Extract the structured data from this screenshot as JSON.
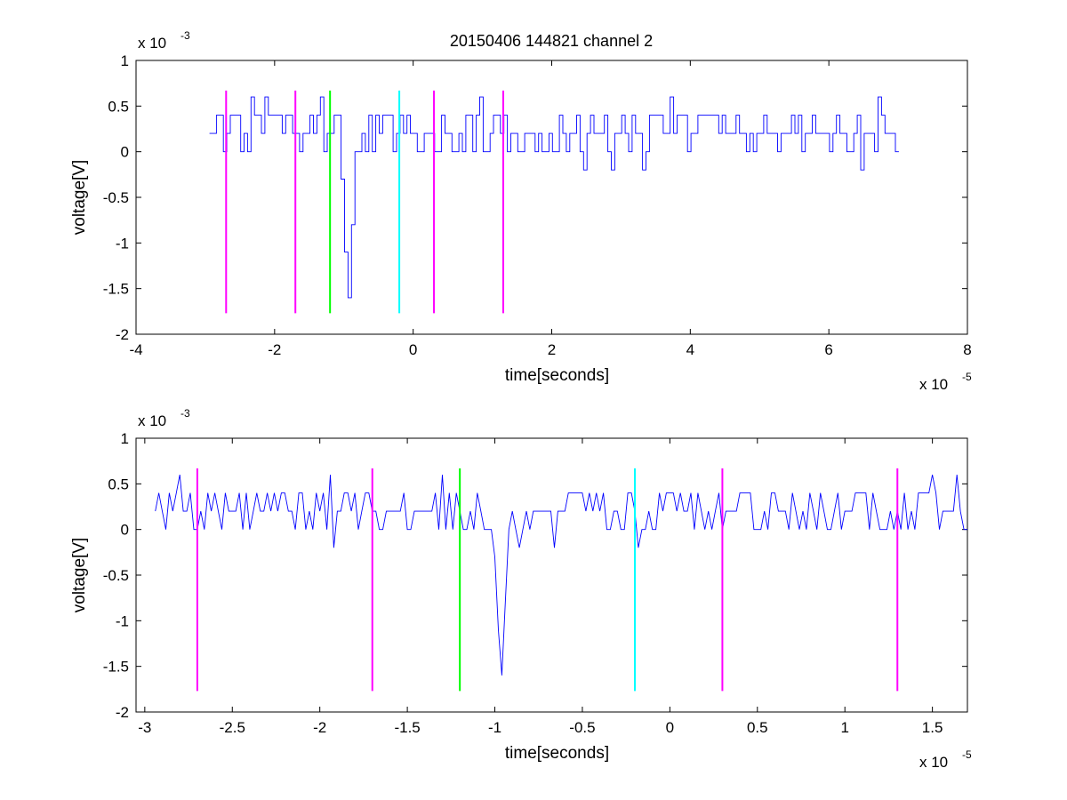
{
  "title": "20150406 144821 channel 2",
  "colors": {
    "signal": "#0000ff",
    "magenta": "#ff00ff",
    "green": "#00ff00",
    "cyan": "#00ffff",
    "axis": "#000000"
  },
  "chart_data": [
    {
      "type": "line",
      "xlabel": "time[seconds]",
      "ylabel": "voltage[V]",
      "x_multiplier": {
        "base": "x 10",
        "exp": "-5"
      },
      "y_multiplier": {
        "base": "x 10",
        "exp": "-3"
      },
      "xlim": [
        -4,
        8
      ],
      "ylim": [
        -2,
        1
      ],
      "xticks": [
        -4,
        -2,
        0,
        2,
        4,
        6,
        8
      ],
      "xtick_labels": [
        "-4",
        "-2",
        "0",
        "2",
        "4",
        "6",
        "8"
      ],
      "yticks": [
        1,
        0.5,
        0,
        -0.5,
        -1,
        -1.5,
        -2
      ],
      "ytick_labels": [
        "1",
        "0.5",
        "0",
        "-0.5",
        "-1",
        "-1.5",
        "-2"
      ],
      "series": [
        {
          "color": "#0000ff",
          "x_range": [
            -2.94,
            7.02
          ],
          "baseline": 0.2,
          "quantum": 0.2,
          "spike": {
            "x": -0.97,
            "y": -1.6
          }
        }
      ],
      "markers": [
        {
          "x": -2.7,
          "color": "#ff00ff",
          "y_range": [
            -1.77,
            0.67
          ]
        },
        {
          "x": -1.7,
          "color": "#ff00ff",
          "y_range": [
            -1.77,
            0.67
          ]
        },
        {
          "x": -1.2,
          "color": "#00ff00",
          "y_range": [
            -1.77,
            0.67
          ]
        },
        {
          "x": -0.2,
          "color": "#00ffff",
          "y_range": [
            -1.77,
            0.67
          ]
        },
        {
          "x": 0.3,
          "color": "#ff00ff",
          "y_range": [
            -1.77,
            0.67
          ]
        },
        {
          "x": 1.3,
          "color": "#ff00ff",
          "y_range": [
            -1.77,
            0.67
          ]
        }
      ]
    },
    {
      "type": "line",
      "xlabel": "time[seconds]",
      "ylabel": "voltage[V]",
      "x_multiplier": {
        "base": "x 10",
        "exp": "-5"
      },
      "y_multiplier": {
        "base": "x 10",
        "exp": "-3"
      },
      "xlim": [
        -3.05,
        1.7
      ],
      "ylim": [
        -2,
        1
      ],
      "xticks": [
        -3,
        -2.5,
        -2,
        -1.5,
        -1,
        -0.5,
        0,
        0.5,
        1,
        1.5
      ],
      "xtick_labels": [
        "-3",
        "-2.5",
        "-2",
        "-1.5",
        "-1",
        "-0.5",
        "0",
        "0.5",
        "1",
        "1.5"
      ],
      "yticks": [
        1,
        0.5,
        0,
        -0.5,
        -1,
        -1.5,
        -2
      ],
      "ytick_labels": [
        "1",
        "0.5",
        "0",
        "-0.5",
        "-1",
        "-1.5",
        "-2"
      ],
      "series": [
        {
          "color": "#0000ff",
          "x_range": [
            -2.94,
            1.7
          ],
          "baseline": 0.2,
          "quantum": 0.2,
          "spike": {
            "x": -0.97,
            "y": -1.6
          }
        }
      ],
      "markers": [
        {
          "x": -2.7,
          "color": "#ff00ff",
          "y_range": [
            -1.77,
            0.67
          ]
        },
        {
          "x": -1.7,
          "color": "#ff00ff",
          "y_range": [
            -1.77,
            0.67
          ]
        },
        {
          "x": -1.2,
          "color": "#00ff00",
          "y_range": [
            -1.77,
            0.67
          ]
        },
        {
          "x": -0.2,
          "color": "#00ffff",
          "y_range": [
            -1.77,
            0.67
          ]
        },
        {
          "x": 0.3,
          "color": "#ff00ff",
          "y_range": [
            -1.77,
            0.67
          ]
        },
        {
          "x": 1.3,
          "color": "#ff00ff",
          "y_range": [
            -1.77,
            0.67
          ]
        }
      ]
    }
  ]
}
